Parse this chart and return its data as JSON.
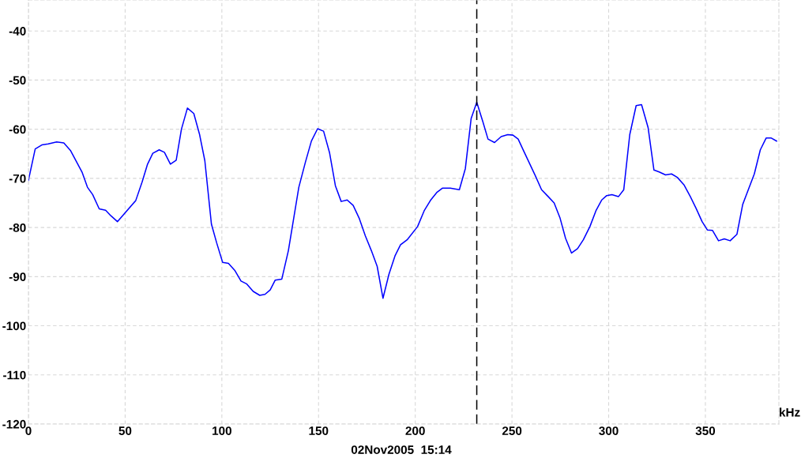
{
  "chart_data": {
    "type": "line",
    "xlabel": "kHz",
    "x": [
      0,
      3.5,
      6.9,
      10.2,
      14.6,
      18.3,
      21.7,
      27.8,
      30.5,
      33.2,
      36.6,
      39.9,
      42.6,
      46.0,
      55.5,
      58.8,
      61.5,
      64.3,
      67.6,
      70.3,
      73.4,
      76.4,
      79.1,
      82.2,
      85.5,
      88.5,
      91.2,
      94.6,
      97.3,
      100.4,
      103.4,
      106.8,
      109.9,
      112.9,
      116.2,
      119.6,
      122.3,
      125.0,
      127.6,
      131.0,
      134.4,
      139.8,
      143.2,
      146.3,
      149.5,
      152.6,
      155.7,
      158.7,
      161.7,
      164.8,
      167.9,
      171.1,
      174.2,
      177.3,
      180.3,
      183.3,
      186.4,
      189.5,
      192.4,
      195.8,
      201.2,
      204.6,
      208.0,
      211.3,
      214.0,
      218.1,
      222.8,
      225.9,
      228.9,
      231.8,
      234.9,
      237.6,
      241.0,
      244.4,
      247.8,
      250.5,
      253.2,
      255.9,
      262.0,
      265.3,
      268.7,
      271.8,
      274.8,
      277.7,
      280.8,
      283.9,
      286.9,
      290.3,
      293.4,
      296.4,
      299.0,
      301.7,
      305.1,
      307.8,
      310.9,
      314.2,
      317.0,
      320.4,
      323.4,
      326.1,
      329.4,
      332.5,
      335.5,
      338.9,
      342.2,
      345.2,
      348.3,
      351.0,
      353.7,
      356.8,
      359.8,
      362.8,
      366.3,
      369.3,
      375.3,
      378.4,
      381.4,
      384.1,
      386.8
    ],
    "series": [
      {
        "color": "#0000ff",
        "values": [
          -70.4,
          -64.0,
          -63.2,
          -63.0,
          -62.6,
          -62.8,
          -64.3,
          -68.8,
          -71.8,
          -73.3,
          -76.2,
          -76.5,
          -77.6,
          -78.8,
          -74.5,
          -70.7,
          -67.2,
          -64.9,
          -64.2,
          -64.7,
          -67.1,
          -66.3,
          -60.0,
          -55.7,
          -56.8,
          -61.1,
          -66.4,
          -79.3,
          -83.1,
          -87.1,
          -87.3,
          -88.8,
          -90.9,
          -91.5,
          -93.0,
          -93.8,
          -93.6,
          -92.7,
          -90.7,
          -90.5,
          -84.7,
          -71.8,
          -66.7,
          -62.4,
          -59.9,
          -60.4,
          -64.8,
          -71.5,
          -74.7,
          -74.4,
          -75.5,
          -78.2,
          -81.7,
          -84.7,
          -87.9,
          -94.4,
          -89.5,
          -85.8,
          -83.5,
          -82.5,
          -79.8,
          -76.6,
          -74.4,
          -72.8,
          -72.0,
          -72.0,
          -72.3,
          -68.0,
          -57.8,
          -54.5,
          -58.4,
          -62.0,
          -62.7,
          -61.5,
          -61.1,
          -61.2,
          -62.0,
          -64.3,
          -69.4,
          -72.3,
          -73.7,
          -75.0,
          -78.0,
          -82.2,
          -85.2,
          -84.3,
          -82.5,
          -79.8,
          -76.6,
          -74.4,
          -73.5,
          -73.3,
          -73.7,
          -72.3,
          -61.1,
          -55.2,
          -55.0,
          -59.7,
          -68.3,
          -68.7,
          -69.3,
          -69.1,
          -69.8,
          -71.3,
          -73.7,
          -76.1,
          -78.8,
          -80.5,
          -80.6,
          -82.7,
          -82.3,
          -82.7,
          -81.4,
          -75.3,
          -69.1,
          -64.2,
          -61.8,
          -61.8,
          -62.4
        ]
      }
    ],
    "xlim": [
      0,
      388
    ],
    "xticks": [
      0,
      50,
      100,
      150,
      200,
      250,
      300,
      350
    ],
    "ylim": [
      -120,
      -33.7
    ],
    "yticks": [
      -120,
      -110,
      -100,
      -90,
      -80,
      -70,
      -60,
      -50,
      -40
    ],
    "grid": true,
    "marker": "none",
    "line_style": "solid",
    "ref_lines": [
      {
        "axis": "x",
        "value": 231.8,
        "color": "#000000",
        "line_style": "dashed"
      }
    ],
    "annotations": [
      "02Nov2005  15:14"
    ]
  }
}
